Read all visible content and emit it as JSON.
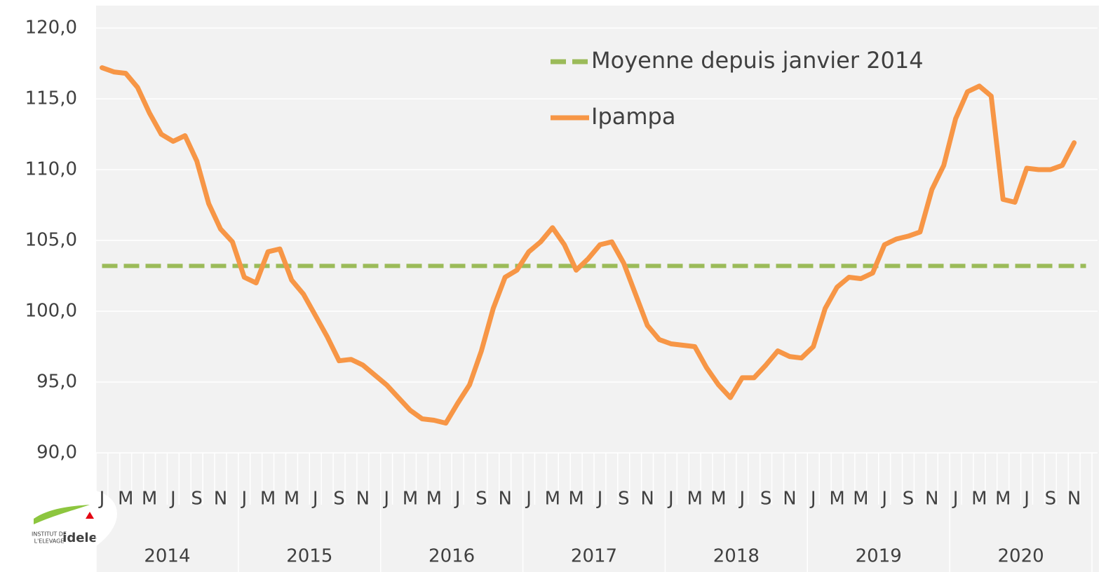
{
  "chart_data": {
    "type": "line",
    "categories": [
      "J",
      null,
      "M",
      null,
      "M",
      null,
      "J",
      null,
      "S",
      null,
      "N",
      null,
      "J",
      null,
      "M",
      null,
      "M",
      null,
      "J",
      null,
      "S",
      null,
      "N",
      null,
      "J",
      null,
      "M",
      null,
      "M",
      null,
      "J",
      null,
      "S",
      null,
      "N",
      null,
      "J",
      null,
      "M",
      null,
      "M",
      null,
      "J",
      null,
      "S",
      null,
      "N",
      null,
      "J",
      null,
      "M",
      null,
      "M",
      null,
      "J",
      null,
      "S",
      null,
      "N",
      null,
      "J",
      null,
      "M",
      null,
      "M",
      null,
      "J",
      null,
      "S",
      null,
      "N",
      null,
      "J",
      null,
      "M",
      null,
      "M",
      null,
      "J",
      null,
      "S",
      null,
      "N",
      null
    ],
    "year_groups": [
      "2014",
      "2015",
      "2016",
      "2017",
      "2018",
      "2019",
      "2020"
    ],
    "series": [
      {
        "name": "Moyenne depuis janvier 2014",
        "color": "#9bbb59",
        "dashed": true,
        "values": [
          103.2,
          103.2,
          103.2,
          103.2,
          103.2,
          103.2,
          103.2,
          103.2,
          103.2,
          103.2,
          103.2,
          103.2,
          103.2,
          103.2,
          103.2,
          103.2,
          103.2,
          103.2,
          103.2,
          103.2,
          103.2,
          103.2,
          103.2,
          103.2,
          103.2,
          103.2,
          103.2,
          103.2,
          103.2,
          103.2,
          103.2,
          103.2,
          103.2,
          103.2,
          103.2,
          103.2,
          103.2,
          103.2,
          103.2,
          103.2,
          103.2,
          103.2,
          103.2,
          103.2,
          103.2,
          103.2,
          103.2,
          103.2,
          103.2,
          103.2,
          103.2,
          103.2,
          103.2,
          103.2,
          103.2,
          103.2,
          103.2,
          103.2,
          103.2,
          103.2,
          103.2,
          103.2,
          103.2,
          103.2,
          103.2,
          103.2,
          103.2,
          103.2,
          103.2,
          103.2,
          103.2,
          103.2,
          103.2,
          103.2,
          103.2,
          103.2,
          103.2,
          103.2,
          103.2,
          103.2,
          103.2,
          103.2,
          103.2,
          103.2
        ]
      },
      {
        "name": "Ipampa",
        "color": "#f79646",
        "dashed": false,
        "values": [
          117.2,
          116.9,
          116.8,
          115.8,
          114.0,
          112.5,
          112.0,
          112.4,
          110.6,
          107.6,
          105.8,
          104.9,
          102.4,
          102.0,
          104.2,
          104.4,
          102.2,
          101.2,
          99.7,
          98.2,
          96.5,
          96.6,
          96.2,
          95.5,
          94.8,
          93.9,
          93.0,
          92.4,
          92.3,
          92.1,
          93.5,
          94.8,
          97.2,
          100.2,
          102.4,
          102.9,
          104.2,
          104.9,
          105.9,
          104.7,
          102.9,
          103.7,
          104.7,
          104.9,
          103.4,
          101.2,
          99.0,
          98.0,
          97.7,
          97.6,
          97.5,
          96.0,
          94.8,
          93.9,
          95.3,
          95.3,
          96.2,
          97.2,
          96.8,
          96.7,
          97.5,
          100.2,
          101.7,
          102.4,
          102.3,
          102.7,
          104.7,
          105.1,
          105.3,
          105.6,
          108.6,
          110.3,
          113.6,
          115.5,
          115.9,
          115.2,
          107.9,
          107.7,
          110.1,
          110.0,
          110.0,
          110.3,
          111.9,
          null
        ]
      }
    ],
    "ylim": [
      90,
      120
    ],
    "yticks": [
      {
        "value": 90,
        "label": "90,0"
      },
      {
        "value": 95,
        "label": "95,0"
      },
      {
        "value": 100,
        "label": "100,0"
      },
      {
        "value": 105,
        "label": "105,0"
      },
      {
        "value": 110,
        "label": "110,0"
      },
      {
        "value": 115,
        "label": "115,0"
      },
      {
        "value": 120,
        "label": "120,0"
      }
    ],
    "grid": true,
    "legend": "top-right",
    "logo": {
      "line1": "INSTITUT DE",
      "line2": "L'ELEVAGE",
      "brand": "idele"
    }
  }
}
